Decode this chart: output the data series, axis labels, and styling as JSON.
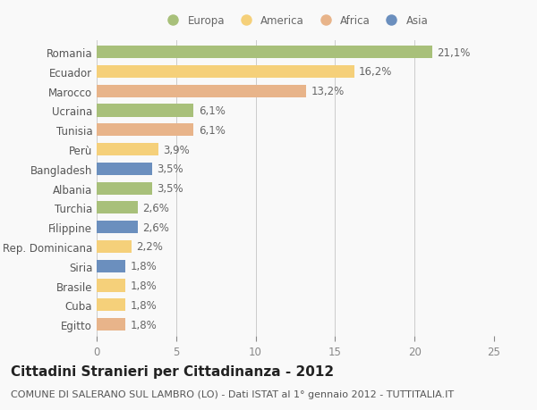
{
  "countries": [
    "Romania",
    "Ecuador",
    "Marocco",
    "Ucraina",
    "Tunisia",
    "Perù",
    "Bangladesh",
    "Albania",
    "Turchia",
    "Filippine",
    "Rep. Dominicana",
    "Siria",
    "Brasile",
    "Cuba",
    "Egitto"
  ],
  "values": [
    21.1,
    16.2,
    13.2,
    6.1,
    6.1,
    3.9,
    3.5,
    3.5,
    2.6,
    2.6,
    2.2,
    1.8,
    1.8,
    1.8,
    1.8
  ],
  "labels": [
    "21,1%",
    "16,2%",
    "13,2%",
    "6,1%",
    "6,1%",
    "3,9%",
    "3,5%",
    "3,5%",
    "2,6%",
    "2,6%",
    "2,2%",
    "1,8%",
    "1,8%",
    "1,8%",
    "1,8%"
  ],
  "continents": [
    "Europa",
    "America",
    "Africa",
    "Europa",
    "Africa",
    "America",
    "Asia",
    "Europa",
    "Europa",
    "Asia",
    "America",
    "Asia",
    "America",
    "America",
    "Africa"
  ],
  "continent_colors": {
    "Europa": "#a8c07a",
    "America": "#f5d07a",
    "Africa": "#e8b48a",
    "Asia": "#6b8fbe"
  },
  "legend_order": [
    "Europa",
    "America",
    "Africa",
    "Asia"
  ],
  "xlim": [
    0,
    25
  ],
  "xticks": [
    0,
    5,
    10,
    15,
    20,
    25
  ],
  "title": "Cittadini Stranieri per Cittadinanza - 2012",
  "subtitle": "COMUNE DI SALERANO SUL LAMBRO (LO) - Dati ISTAT al 1° gennaio 2012 - TUTTITALIA.IT",
  "background_color": "#f9f9f9",
  "bar_height": 0.65,
  "title_fontsize": 11,
  "subtitle_fontsize": 8,
  "label_fontsize": 8.5,
  "tick_fontsize": 8.5
}
